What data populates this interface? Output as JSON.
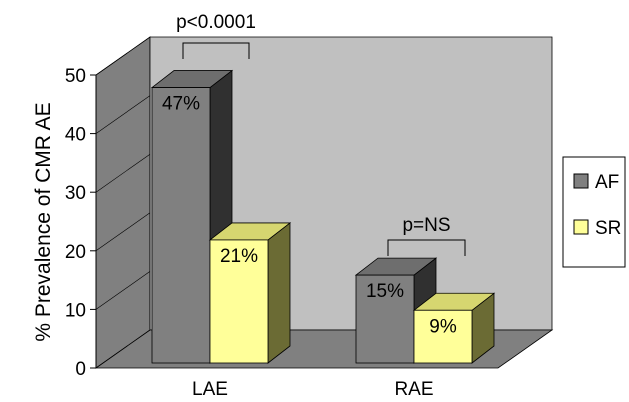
{
  "chart_data": {
    "type": "bar",
    "ylabel": "% Prevalence of CMR AE",
    "ylim": [
      0,
      50
    ],
    "yticks": [
      0,
      10,
      20,
      30,
      40,
      50
    ],
    "categories": [
      "LAE",
      "RAE"
    ],
    "series": [
      {
        "name": "AF",
        "values": [
          47,
          15
        ],
        "labels": [
          "47%",
          "15%"
        ],
        "color": "#808080"
      },
      {
        "name": "SR",
        "values": [
          21,
          9
        ],
        "labels": [
          "21%",
          "9%"
        ],
        "color": "#ffff99"
      }
    ],
    "annotations": [
      {
        "text": "p<0.0001",
        "category": "LAE"
      },
      {
        "text": "p=NS",
        "category": "RAE"
      }
    ],
    "legend": "right",
    "grid": false,
    "style": "3d",
    "wall_color": "#c0c0c0",
    "floor_color": "#808080"
  }
}
